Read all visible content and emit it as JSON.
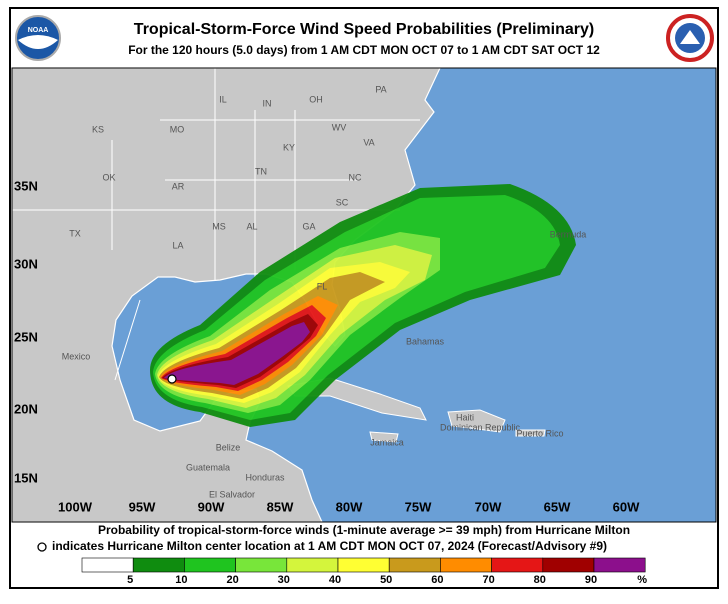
{
  "header": {
    "title": "Tropical-Storm-Force Wind Speed Probabilities (Preliminary)",
    "subtitle": "For the 120 hours (5.0 days) from 1 AM CDT MON OCT 07 to 1 AM CDT SAT OCT 12",
    "logo_text": "NOAA"
  },
  "map": {
    "longitudes": [
      "100W",
      "95W",
      "90W",
      "85W",
      "80W",
      "75W",
      "70W",
      "65W",
      "60W"
    ],
    "latitudes": [
      "35N",
      "30N",
      "25N",
      "20N",
      "15N"
    ],
    "places": [
      "KS",
      "MO",
      "IL",
      "IN",
      "OH",
      "PA",
      "WV",
      "VA",
      "KY",
      "TN",
      "NC",
      "OK",
      "AR",
      "SC",
      "MS",
      "AL",
      "GA",
      "LA",
      "TX",
      "FL",
      "Mexico",
      "Bermuda",
      "Bahamas",
      "Belize",
      "Guatemala",
      "Honduras",
      "El Salvador",
      "Jamaica",
      "Haiti",
      "Dominican Republic",
      "Puerto Rico"
    ]
  },
  "footer": {
    "line1": "Probability of tropical-storm-force winds (1-minute average >= 39 mph) from Hurricane Milton",
    "line2": "indicates Hurricane Milton center location at 1 AM CDT MON OCT 07, 2024 (Forecast/Advisory #9)"
  },
  "legend": {
    "colors": [
      "#ffffff",
      "#0f8c0f",
      "#1fc41f",
      "#78e63a",
      "#d4f53c",
      "#ffff33",
      "#c99a1c",
      "#ff8c00",
      "#e51616",
      "#a00000",
      "#8c0f8c"
    ],
    "labels": [
      "5",
      "10",
      "20",
      "30",
      "40",
      "50",
      "60",
      "70",
      "80",
      "90",
      "%"
    ]
  }
}
